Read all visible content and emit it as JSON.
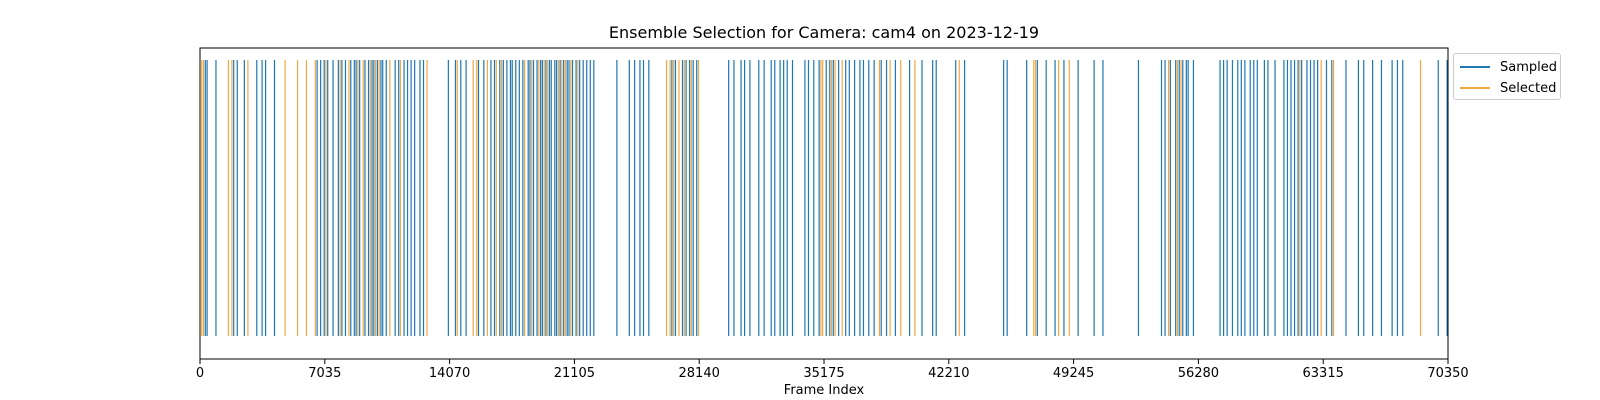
{
  "chart_data": {
    "type": "event-raster",
    "title": "Ensemble Selection for Camera: cam4 on 2023-12-19",
    "xlabel": "Frame Index",
    "ylabel": "",
    "xlim": [
      0,
      70350
    ],
    "xticks": [
      0,
      7035,
      14070,
      21105,
      28140,
      35175,
      42210,
      49245,
      56280,
      63315,
      70350
    ],
    "grid": false,
    "legend_position": "outside-top-right",
    "series": [
      {
        "name": "Sampled",
        "color": "#1f77b4",
        "x": [
          300,
          400,
          900,
          1900,
          2100,
          2500,
          3200,
          3500,
          3700,
          4200,
          6600,
          6800,
          7000,
          7200,
          7500,
          7800,
          8000,
          8200,
          8500,
          8700,
          8800,
          9000,
          9300,
          9500,
          9700,
          9800,
          10000,
          10200,
          10300,
          10500,
          11000,
          11200,
          11500,
          11700,
          11900,
          12100,
          12400,
          12600,
          14000,
          14400,
          14700,
          15000,
          15700,
          16000,
          16400,
          16600,
          16900,
          17100,
          17300,
          17500,
          17600,
          17800,
          18000,
          18200,
          18500,
          18600,
          18800,
          19000,
          19200,
          19300,
          19500,
          19700,
          19800,
          20000,
          20100,
          20300,
          20500,
          20700,
          20800,
          21000,
          21200,
          21400,
          21600,
          21800,
          22000,
          22200,
          23500,
          24200,
          24500,
          24800,
          25000,
          25300,
          26600,
          26800,
          27200,
          27400,
          27600,
          27800,
          28000,
          29800,
          30100,
          30500,
          30700,
          31000,
          31500,
          31800,
          32200,
          32400,
          32700,
          32900,
          33100,
          33400,
          34100,
          34300,
          34600,
          34900,
          35300,
          35500,
          35700,
          36000,
          36400,
          36600,
          36900,
          37200,
          37400,
          37700,
          38000,
          38400,
          38700,
          39200,
          40000,
          40700,
          41300,
          41500,
          42600,
          43100,
          45300,
          45500,
          46600,
          47200,
          47700,
          48200,
          48700,
          49500,
          50400,
          50900,
          52900,
          54200,
          54400,
          54700,
          55000,
          55200,
          55400,
          55600,
          55700,
          56000,
          57500,
          57700,
          57900,
          58200,
          58500,
          58700,
          58900,
          59200,
          59400,
          59600,
          60000,
          60200,
          60600,
          61100,
          61300,
          61500,
          61700,
          61900,
          62100,
          62400,
          62600,
          62800,
          63000,
          63500,
          63800,
          64600,
          65300,
          65600,
          66100,
          66600,
          67200,
          67500,
          67800,
          69800,
          70300
        ]
      },
      {
        "name": "Selected",
        "color": "#f5a742",
        "x": [
          100,
          200,
          1600,
          1800,
          2700,
          4800,
          5500,
          6000,
          6500,
          7100,
          7900,
          8400,
          8900,
          9200,
          9600,
          9900,
          10100,
          10700,
          11300,
          12800,
          14500,
          15400,
          15600,
          16200,
          16700,
          17000,
          18300,
          18700,
          19100,
          19400,
          19600,
          20200,
          20400,
          20600,
          20900,
          21300,
          26300,
          26500,
          26700,
          27000,
          27300,
          27700,
          28100,
          35000,
          35100,
          35600,
          35800,
          36200,
          38300,
          38900,
          39500,
          40300,
          42800,
          47000,
          47100,
          48400,
          49000,
          54600,
          55100,
          55300,
          62000,
          63200,
          63900,
          68800
        ]
      }
    ]
  }
}
